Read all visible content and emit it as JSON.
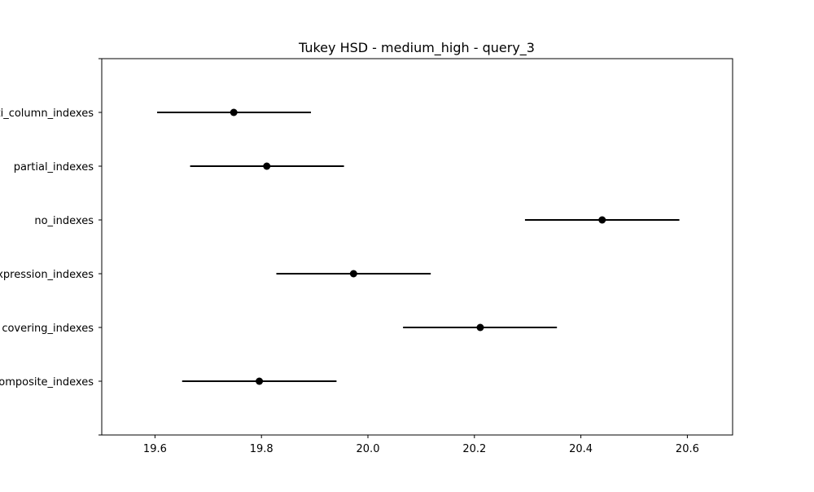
{
  "chart_data": {
    "type": "scatter",
    "title": "Tukey HSD - medium_high - query_3",
    "xlabel": "",
    "ylabel": "",
    "xlim": [
      19.5,
      20.685
    ],
    "x_ticks": [
      19.6,
      19.8,
      20.0,
      20.2,
      20.4,
      20.6
    ],
    "x_tick_labels": [
      "19.6",
      "19.8",
      "20.0",
      "20.2",
      "20.4",
      "20.6"
    ],
    "grid": false,
    "groups": [
      {
        "label": "multi_column_indexes",
        "mean": 19.748,
        "lower": 19.604,
        "upper": 19.893
      },
      {
        "label": "partial_indexes",
        "mean": 19.81,
        "lower": 19.666,
        "upper": 19.955
      },
      {
        "label": "no_indexes",
        "mean": 20.44,
        "lower": 20.295,
        "upper": 20.585
      },
      {
        "label": "expression_indexes",
        "mean": 19.973,
        "lower": 19.828,
        "upper": 20.118
      },
      {
        "label": "covering_indexes",
        "mean": 20.211,
        "lower": 20.066,
        "upper": 20.355
      },
      {
        "label": "composite_indexes",
        "mean": 19.796,
        "lower": 19.651,
        "upper": 19.941
      }
    ],
    "colors": {
      "line": "#000000",
      "marker": "#000000"
    }
  }
}
